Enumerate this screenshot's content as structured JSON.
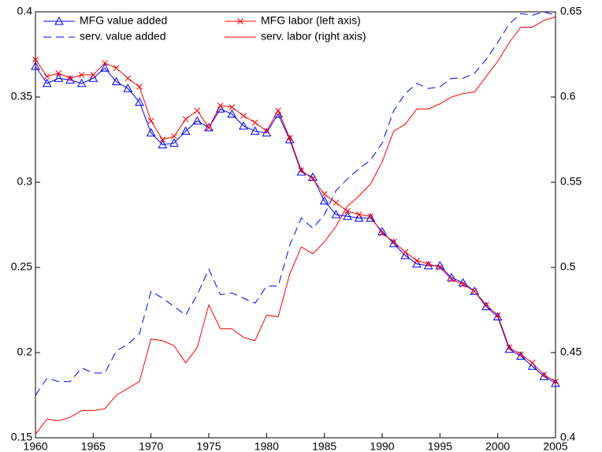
{
  "chart_data": {
    "type": "line",
    "x": [
      1960,
      1961,
      1962,
      1963,
      1964,
      1965,
      1966,
      1967,
      1968,
      1969,
      1970,
      1971,
      1972,
      1973,
      1974,
      1975,
      1976,
      1977,
      1978,
      1979,
      1980,
      1981,
      1982,
      1983,
      1984,
      1985,
      1986,
      1987,
      1988,
      1989,
      1990,
      1991,
      1992,
      1993,
      1994,
      1995,
      1996,
      1997,
      1998,
      1999,
      2000,
      2001,
      2002,
      2003,
      2004,
      2005
    ],
    "xlim": [
      1960,
      2005
    ],
    "xticks": [
      1960,
      1965,
      1970,
      1975,
      1980,
      1985,
      1990,
      1995,
      2000,
      2005
    ],
    "ylim": [
      0.15,
      0.4
    ],
    "yticks": [
      0.15,
      0.2,
      0.25,
      0.3,
      0.35,
      0.4
    ],
    "y2lim": [
      0.4,
      0.65
    ],
    "y2ticks": [
      0.4,
      0.45,
      0.5,
      0.55,
      0.6,
      0.65
    ],
    "legend": "upper left",
    "series": [
      {
        "name": "MFG value added",
        "color": "#0000ff",
        "marker": "triangle",
        "dash": false,
        "axis": "y",
        "values": [
          0.368,
          0.358,
          0.361,
          0.36,
          0.358,
          0.361,
          0.367,
          0.359,
          0.355,
          0.347,
          0.329,
          0.322,
          0.323,
          0.33,
          0.336,
          0.332,
          0.343,
          0.34,
          0.333,
          0.33,
          0.329,
          0.34,
          0.325,
          0.306,
          0.303,
          0.289,
          0.281,
          0.28,
          0.279,
          0.279,
          0.271,
          0.264,
          0.257,
          0.252,
          0.251,
          0.251,
          0.244,
          0.241,
          0.236,
          0.227,
          0.221,
          0.202,
          0.198,
          0.192,
          0.186,
          0.182
        ]
      },
      {
        "name": "serv. value added",
        "color": "#0000ff",
        "marker": "none",
        "dash": true,
        "axis": "y2",
        "values": [
          0.425,
          0.435,
          0.433,
          0.433,
          0.441,
          0.438,
          0.438,
          0.451,
          0.455,
          0.461,
          0.486,
          0.482,
          0.477,
          0.472,
          0.484,
          0.499,
          0.484,
          0.485,
          0.482,
          0.479,
          0.489,
          0.489,
          0.513,
          0.529,
          0.523,
          0.531,
          0.545,
          0.552,
          0.558,
          0.563,
          0.573,
          0.592,
          0.602,
          0.608,
          0.605,
          0.606,
          0.611,
          0.611,
          0.614,
          0.622,
          0.632,
          0.643,
          0.649,
          0.648,
          0.65,
          0.648
        ]
      },
      {
        "name": "MFG labor (left axis)",
        "color": "#ff0000",
        "marker": "x",
        "dash": false,
        "axis": "y",
        "values": [
          0.372,
          0.362,
          0.364,
          0.361,
          0.363,
          0.363,
          0.37,
          0.367,
          0.361,
          0.356,
          0.336,
          0.325,
          0.327,
          0.337,
          0.342,
          0.332,
          0.345,
          0.344,
          0.339,
          0.335,
          0.33,
          0.342,
          0.326,
          0.307,
          0.302,
          0.293,
          0.288,
          0.283,
          0.281,
          0.28,
          0.27,
          0.265,
          0.259,
          0.254,
          0.252,
          0.25,
          0.243,
          0.24,
          0.236,
          0.228,
          0.222,
          0.203,
          0.199,
          0.194,
          0.187,
          0.183
        ]
      },
      {
        "name": "serv. labor (right axis)",
        "color": "#ff0000",
        "marker": "none",
        "dash": false,
        "axis": "y2",
        "values": [
          0.402,
          0.411,
          0.41,
          0.412,
          0.416,
          0.416,
          0.417,
          0.425,
          0.429,
          0.433,
          0.458,
          0.457,
          0.454,
          0.444,
          0.453,
          0.478,
          0.464,
          0.464,
          0.459,
          0.457,
          0.472,
          0.471,
          0.496,
          0.512,
          0.508,
          0.515,
          0.524,
          0.536,
          0.542,
          0.549,
          0.562,
          0.58,
          0.584,
          0.593,
          0.593,
          0.596,
          0.6,
          0.602,
          0.603,
          0.612,
          0.621,
          0.632,
          0.641,
          0.641,
          0.645,
          0.647
        ]
      }
    ]
  }
}
